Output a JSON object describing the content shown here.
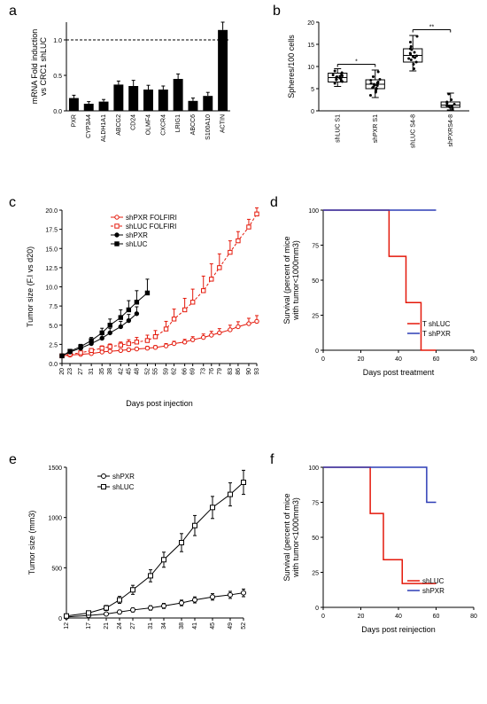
{
  "panels": {
    "a": {
      "label": "a",
      "ylabel": "mRNA Fold induction\nvs CRC1 shLUC",
      "ylim": [
        0,
        1.25
      ],
      "ytick_step": 0.5,
      "dashed_line_y": 1.0,
      "categories": [
        "PXR",
        "CYP3A4",
        "ALDH1A1",
        "ABCG2",
        "CD24",
        "OLMF4",
        "CXCR4",
        "LRIG1",
        "ABCC6",
        "S100A10",
        "ACTIN"
      ],
      "values": [
        0.18,
        0.1,
        0.13,
        0.37,
        0.35,
        0.3,
        0.3,
        0.45,
        0.14,
        0.21,
        1.14
      ],
      "errors": [
        0.04,
        0.03,
        0.03,
        0.05,
        0.08,
        0.06,
        0.05,
        0.07,
        0.04,
        0.05,
        0.11
      ],
      "bar_color": "#000000",
      "error_color": "#000000",
      "background_color": "#ffffff"
    },
    "b": {
      "label": "b",
      "ylabel": "Spheres/100 cells",
      "ylim": [
        0,
        20
      ],
      "ytick_step": 5,
      "categories": [
        "shLUC S1",
        "shPXR S1",
        "shLUC S4-8",
        "shPXRS4-8"
      ],
      "boxes": [
        {
          "min": 5.5,
          "q1": 6.5,
          "med": 7.5,
          "q3": 8.5,
          "max": 9.5,
          "points": [
            7.2,
            7.5,
            7.8,
            6.6,
            8.1,
            7.0,
            8.0,
            8.6,
            6.2,
            7.4,
            7.7,
            8.3,
            6.8,
            9.0,
            7.1,
            7.9
          ]
        },
        {
          "min": 3.0,
          "q1": 5.0,
          "med": 6.0,
          "q3": 7.0,
          "max": 9.2,
          "points": [
            5.1,
            6.2,
            5.8,
            4.5,
            6.9,
            7.1,
            3.5,
            6.0,
            5.4,
            8.8,
            6.5,
            5.0,
            7.7,
            4.2,
            6.1,
            5.7,
            6.3,
            5.2
          ]
        },
        {
          "min": 9.0,
          "q1": 11.0,
          "med": 12.5,
          "q3": 14.0,
          "max": 17.0,
          "points": [
            12.0,
            11.5,
            13.2,
            10.5,
            14.0,
            13.8,
            11.0,
            12.8,
            15.5,
            12.2,
            16.8,
            9.5,
            13.0,
            11.8,
            14.5,
            12.4
          ]
        },
        {
          "min": 0.2,
          "q1": 0.8,
          "med": 1.3,
          "q3": 2.0,
          "max": 4.0,
          "points": [
            1.0,
            1.5,
            0.5,
            2.5,
            1.2,
            3.8,
            0.8,
            1.7,
            2.0,
            1.1
          ]
        }
      ],
      "sig": [
        {
          "from": 0,
          "to": 1,
          "y": 10.5,
          "label": "*"
        },
        {
          "from": 2,
          "to": 3,
          "y": 18.3,
          "label": "**"
        }
      ],
      "box_color": "#000000",
      "point_color": "#000000"
    },
    "c": {
      "label": "c",
      "xlabel": "Days post injection",
      "ylabel": "Tumor size (F.I vs d20)",
      "ylim": [
        0,
        20
      ],
      "yticks": [
        0,
        2.5,
        5.0,
        7.5,
        10.0,
        12.5,
        15.0,
        17.5,
        20.0
      ],
      "xticks": [
        20,
        23,
        27,
        31,
        35,
        38,
        42,
        45,
        48,
        52,
        55,
        59,
        62,
        66,
        69,
        73,
        76,
        79,
        83,
        86,
        90,
        93
      ],
      "series": [
        {
          "name": "shPXR FOLFIRI",
          "color": "#e4180a",
          "marker": "o",
          "open": true,
          "dash": false,
          "x": [
            20,
            23,
            27,
            31,
            35,
            38,
            42,
            45,
            48,
            52,
            55,
            59,
            62,
            66,
            69,
            73,
            76,
            79,
            83,
            86,
            90,
            93
          ],
          "y": [
            1.0,
            1.1,
            1.2,
            1.3,
            1.5,
            1.6,
            1.7,
            1.8,
            1.9,
            2.0,
            2.1,
            2.3,
            2.6,
            2.8,
            3.1,
            3.4,
            3.7,
            4.0,
            4.4,
            4.8,
            5.2,
            5.5
          ],
          "err": [
            0,
            0.1,
            0.1,
            0.1,
            0.15,
            0.15,
            0.2,
            0.2,
            0.2,
            0.25,
            0.25,
            0.3,
            0.3,
            0.35,
            0.4,
            0.45,
            0.5,
            0.55,
            0.6,
            0.65,
            0.7,
            0.75
          ]
        },
        {
          "name": "shLUC FOLFIRI",
          "color": "#e4180a",
          "marker": "s",
          "open": true,
          "dash": true,
          "x": [
            20,
            23,
            27,
            31,
            35,
            38,
            42,
            45,
            48,
            52,
            55,
            59,
            62,
            66,
            69,
            73,
            76,
            79,
            83,
            86,
            90,
            93
          ],
          "y": [
            1.0,
            1.2,
            1.4,
            1.7,
            2.0,
            2.2,
            2.4,
            2.6,
            2.8,
            3.0,
            3.5,
            4.5,
            5.8,
            7.0,
            8.0,
            9.5,
            11.0,
            12.5,
            14.5,
            16.0,
            17.8,
            19.5
          ],
          "err": [
            0,
            0.15,
            0.2,
            0.25,
            0.3,
            0.35,
            0.4,
            0.5,
            0.6,
            0.7,
            0.8,
            1.0,
            1.3,
            1.5,
            1.7,
            1.9,
            2.0,
            1.8,
            1.5,
            1.2,
            1.0,
            0.8
          ]
        },
        {
          "name": "shPXR",
          "color": "#000000",
          "marker": "o",
          "open": false,
          "dash": false,
          "x": [
            20,
            23,
            27,
            31,
            35,
            38,
            42,
            45,
            48
          ],
          "y": [
            1.0,
            1.5,
            2.0,
            2.6,
            3.3,
            4.0,
            4.8,
            5.6,
            6.5
          ],
          "err": [
            0,
            0.2,
            0.3,
            0.4,
            0.5,
            0.6,
            0.7,
            0.8,
            0.9
          ]
        },
        {
          "name": "shLUC",
          "color": "#000000",
          "marker": "s",
          "open": false,
          "dash": false,
          "x": [
            20,
            23,
            27,
            31,
            35,
            38,
            42,
            45,
            48,
            52
          ],
          "y": [
            1.0,
            1.6,
            2.2,
            3.0,
            4.0,
            5.0,
            6.0,
            7.0,
            8.0,
            9.2
          ],
          "err": [
            0,
            0.2,
            0.3,
            0.4,
            0.6,
            0.8,
            1.0,
            1.2,
            1.5,
            1.8
          ]
        }
      ]
    },
    "d": {
      "label": "d",
      "xlabel": "Days post treatment",
      "ylabel": "Survival  (percent of mice with tumor<1000mm3)",
      "xlim": [
        0,
        80
      ],
      "xtick_step": 20,
      "ylim": [
        0,
        100
      ],
      "ytick_step": 25,
      "series": [
        {
          "name": "T shLUC",
          "color": "#e4180a",
          "steps": [
            [
              0,
              100
            ],
            [
              35,
              100
            ],
            [
              35,
              67
            ],
            [
              44,
              67
            ],
            [
              44,
              34
            ],
            [
              52,
              34
            ],
            [
              52,
              0
            ],
            [
              60,
              0
            ]
          ]
        },
        {
          "name": "T shPXR",
          "color": "#2d3db6",
          "steps": [
            [
              0,
              100
            ],
            [
              60,
              100
            ]
          ]
        }
      ]
    },
    "e": {
      "label": "e",
      "xlabel": "",
      "ylabel": "Tumor size (mm3)",
      "ylim": [
        0,
        1500
      ],
      "ytick_step": 500,
      "xticks": [
        12,
        17,
        21,
        24,
        27,
        31,
        34,
        38,
        41,
        45,
        49,
        52
      ],
      "series": [
        {
          "name": "shPXR",
          "color": "#000000",
          "marker": "o",
          "open": true,
          "x": [
            12,
            17,
            21,
            24,
            27,
            31,
            34,
            38,
            41,
            45,
            49,
            52
          ],
          "y": [
            10,
            25,
            40,
            60,
            80,
            100,
            120,
            150,
            180,
            210,
            230,
            250
          ],
          "err": [
            5,
            10,
            15,
            18,
            20,
            22,
            25,
            28,
            30,
            32,
            35,
            38
          ]
        },
        {
          "name": "shLUC",
          "color": "#000000",
          "marker": "s",
          "open": true,
          "x": [
            12,
            17,
            21,
            24,
            27,
            31,
            34,
            38,
            41,
            45,
            49,
            52
          ],
          "y": [
            20,
            50,
            100,
            180,
            280,
            420,
            580,
            750,
            920,
            1100,
            1230,
            1350
          ],
          "err": [
            8,
            15,
            25,
            35,
            45,
            60,
            75,
            90,
            100,
            110,
            115,
            120
          ]
        }
      ]
    },
    "f": {
      "label": "f",
      "xlabel": "Days post reinjection",
      "ylabel": "Survival  (percent of mice with tumor<1000mm3)",
      "xlim": [
        0,
        80
      ],
      "xtick_step": 20,
      "ylim": [
        0,
        100
      ],
      "ytick_step": 25,
      "series": [
        {
          "name": "shLUC",
          "color": "#e4180a",
          "steps": [
            [
              0,
              100
            ],
            [
              25,
              100
            ],
            [
              25,
              67
            ],
            [
              32,
              67
            ],
            [
              32,
              34
            ],
            [
              42,
              34
            ],
            [
              42,
              17
            ],
            [
              60,
              17
            ]
          ]
        },
        {
          "name": "shPXR",
          "color": "#2d3db6",
          "steps": [
            [
              0,
              100
            ],
            [
              55,
              100
            ],
            [
              55,
              75
            ],
            [
              60,
              75
            ]
          ]
        }
      ]
    }
  }
}
